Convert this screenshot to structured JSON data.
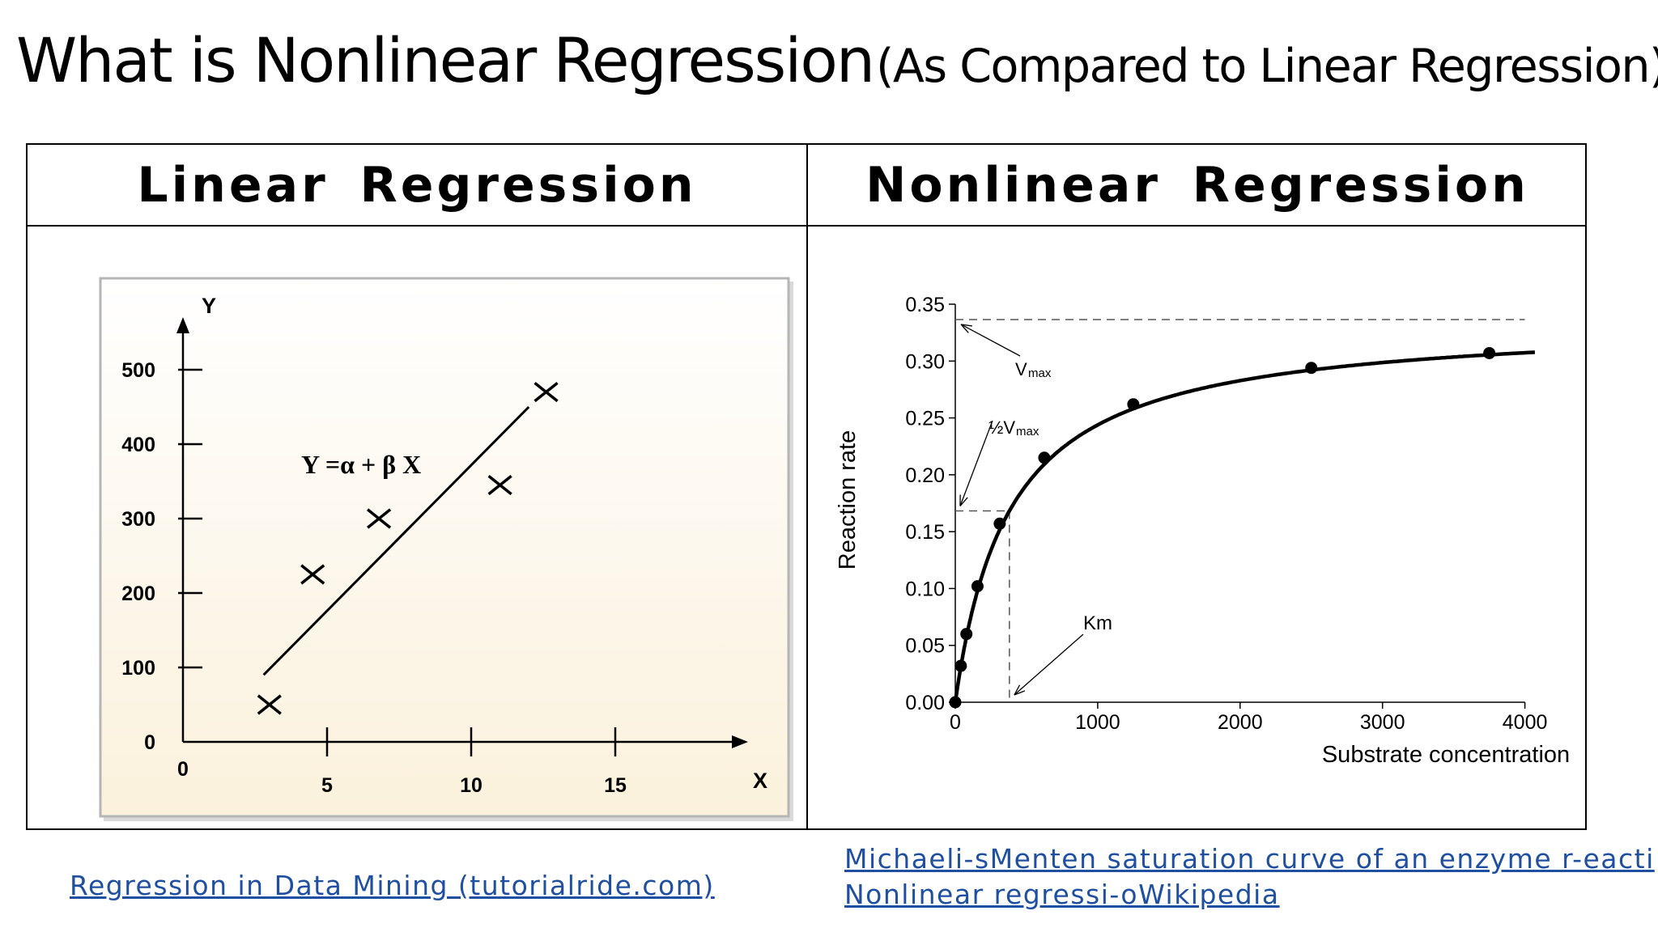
{
  "slide": {
    "title_main": "What is Nonlinear Regression",
    "title_sub": "(As Compared to Linear Regression)",
    "header_left": "Linear Regression",
    "header_right": "Nonlinear Regression",
    "link_left": "Regression in Data Mining (tutorialride.com)",
    "link_right_1": "Michaeli-sMenten saturation curve of an enzyme r-eacti",
    "link_right_2": "Nonlinear regressi-oWikipedia",
    "colors": {
      "link": "#1f4fa0",
      "linear_panel_bg": "#fbf1dc",
      "curve": "#000000"
    }
  },
  "chart_data": [
    {
      "type": "scatter",
      "ylabel": "Y",
      "xlabel": "X",
      "xlim": [
        0,
        20
      ],
      "ylim": [
        0,
        550
      ],
      "x_ticks": [
        "0",
        "5",
        "10",
        "15"
      ],
      "y_ticks": [
        "0",
        "100",
        "200",
        "300",
        "400",
        "500"
      ],
      "annotation": "Y =α + β X",
      "series": [
        {
          "marker": "x",
          "x": [
            3,
            4.5,
            6.8,
            11,
            12.6
          ],
          "y": [
            50,
            225,
            300,
            345,
            470
          ]
        }
      ],
      "fit_line": {
        "x": [
          2.8,
          12
        ],
        "y": [
          90,
          450
        ]
      },
      "grid": false
    },
    {
      "type": "line",
      "xlabel": "Substrate concentration",
      "ylabel": "Reaction rate",
      "xlim": [
        0,
        4000
      ],
      "ylim": [
        0,
        0.35
      ],
      "x_ticks": [
        "0",
        "1000",
        "2000",
        "3000",
        "4000"
      ],
      "y_ticks": [
        "0.00",
        "0.05",
        "0.10",
        "0.15",
        "0.20",
        "0.25",
        "0.30",
        "0.35"
      ],
      "Vmax": 0.3365,
      "Km": 380,
      "points": {
        "x": [
          0,
          39,
          78,
          156,
          312,
          625,
          1250,
          2500,
          3750
        ],
        "y": [
          0.0,
          0.032,
          0.06,
          0.102,
          0.157,
          0.215,
          0.262,
          0.294,
          0.307
        ]
      },
      "annotations": {
        "vmax_label": "Vmax",
        "half_vmax_label": "½Vmax",
        "km_label": "Km"
      },
      "grid": false
    }
  ]
}
